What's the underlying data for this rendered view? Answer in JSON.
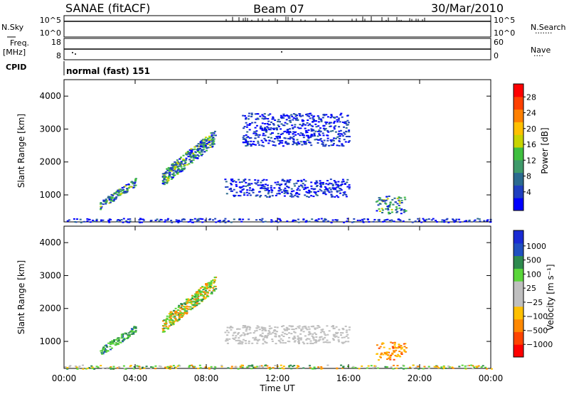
{
  "header": {
    "station": "SANAE (fitACF)",
    "beam": "Beam 07",
    "date": "30/Mar/2010"
  },
  "top_panels": {
    "nsky_label": "N.Sky",
    "nsky_ticks": [
      "10^5",
      "10^0"
    ],
    "nsearch_label": "N.Search",
    "nsearch_ticks": [
      "10^5",
      "10^0"
    ],
    "freq_label": "Freq.",
    "freq_unit": "[MHz]",
    "freq_ticks": [
      "18",
      "8"
    ],
    "nave_label": "Nave",
    "nave_ticks": [
      "60",
      "0"
    ],
    "cpid_label": "CPID",
    "cpid_text": "normal (fast) 151"
  },
  "colors": {
    "power_scale": [
      "#0000ff",
      "#1f3fc0",
      "#2b6a8f",
      "#3f9a6a",
      "#3fbf3f",
      "#c8d400",
      "#ffc000",
      "#ff8000",
      "#ff4000",
      "#ff0000"
    ],
    "velocity_scale": [
      "#1a2bd4",
      "#2050c0",
      "#2e8a4e",
      "#5ad63a",
      "#bfbfbf",
      "#bfbfbf",
      "#ffc000",
      "#ff8800",
      "#ff4400",
      "#ff0000"
    ]
  },
  "chart_data": [
    {
      "type": "heatmap",
      "title": "Power",
      "xlabel": "Time UT",
      "ylabel": "Slant Range [km]",
      "colorbar_label": "Power [dB]",
      "colorbar_ticks": [
        "4",
        "8",
        "12",
        "16",
        "20",
        "24",
        "28"
      ],
      "xlim": [
        0,
        24
      ],
      "ylim": [
        180,
        4500
      ],
      "y_ticks": [
        "1000",
        "2000",
        "3000",
        "4000"
      ],
      "regions": [
        {
          "t": [
            2.0,
            4.0
          ],
          "r": [
            700,
            1400
          ],
          "level": "mixed-green"
        },
        {
          "t": [
            5.5,
            8.5
          ],
          "r": [
            1500,
            2800
          ],
          "level": "mixed-green"
        },
        {
          "t": [
            9.0,
            16.0
          ],
          "r": [
            950,
            1500
          ],
          "level": "low"
        },
        {
          "t": [
            10.0,
            16.0
          ],
          "r": [
            2500,
            3500
          ],
          "level": "low"
        },
        {
          "t": [
            17.5,
            19.2
          ],
          "r": [
            450,
            1000
          ],
          "level": "mixed-green"
        },
        {
          "t": [
            0.0,
            24.0
          ],
          "r": [
            180,
            300
          ],
          "level": "low"
        }
      ]
    },
    {
      "type": "heatmap",
      "title": "Velocity",
      "xlabel": "Time UT",
      "ylabel": "Slant Range [km]",
      "colorbar_label": "Velocity [m s⁻¹]",
      "colorbar_ticks": [
        "1000",
        "500",
        "100",
        "25",
        "−25",
        "−100",
        "−500",
        "−1000"
      ],
      "xlim": [
        0,
        24
      ],
      "ylim": [
        180,
        4500
      ],
      "y_ticks": [
        "1000",
        "2000",
        "3000",
        "4000"
      ],
      "x_ticks": [
        "00:00",
        "04:00",
        "08:00",
        "12:00",
        "16:00",
        "20:00",
        "00:00"
      ],
      "regions": [
        {
          "t": [
            2.0,
            4.0
          ],
          "r": [
            700,
            1400
          ],
          "level": "green-blue"
        },
        {
          "t": [
            5.5,
            8.5
          ],
          "r": [
            1500,
            2800
          ],
          "level": "green-orange"
        },
        {
          "t": [
            9.0,
            16.0
          ],
          "r": [
            950,
            1500
          ],
          "level": "grey"
        },
        {
          "t": [
            17.5,
            19.2
          ],
          "r": [
            450,
            1000
          ],
          "level": "orange"
        },
        {
          "t": [
            0.0,
            24.0
          ],
          "r": [
            180,
            300
          ],
          "level": "mixed"
        }
      ]
    }
  ]
}
